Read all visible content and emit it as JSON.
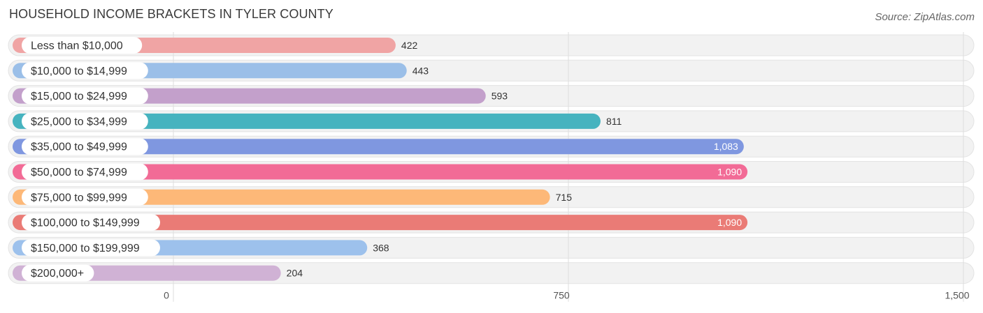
{
  "chart_data": {
    "type": "bar",
    "orientation": "horizontal",
    "title": "HOUSEHOLD INCOME BRACKETS IN TYLER COUNTY",
    "source": "Source: ZipAtlas.com",
    "categories": [
      "Less than $10,000",
      "$10,000 to $14,999",
      "$15,000 to $24,999",
      "$25,000 to $34,999",
      "$35,000 to $49,999",
      "$50,000 to $74,999",
      "$75,000 to $99,999",
      "$100,000 to $149,999",
      "$150,000 to $199,999",
      "$200,000+"
    ],
    "values": [
      422,
      443,
      593,
      811,
      1083,
      1090,
      715,
      1090,
      368,
      204
    ],
    "value_labels": [
      "422",
      "443",
      "593",
      "811",
      "1,083",
      "1,090",
      "715",
      "1,090",
      "368",
      "204"
    ],
    "colors": [
      "#f0a4a4",
      "#9bbfe8",
      "#c3a0cb",
      "#46b3bf",
      "#7f97e0",
      "#f26b96",
      "#fdb878",
      "#ea7b76",
      "#9dc1ec",
      "#d0b2d5"
    ],
    "xlim": [
      0,
      1500
    ],
    "ticks": [
      0,
      750,
      1500
    ],
    "tick_labels": [
      "0",
      "750",
      "1,500"
    ],
    "xlabel": "",
    "ylabel": "",
    "grid": true
  }
}
